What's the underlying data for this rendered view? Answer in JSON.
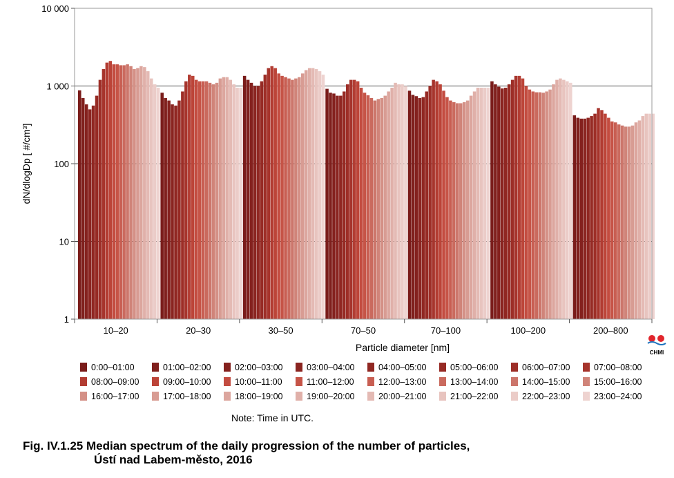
{
  "chart_data": {
    "type": "bar",
    "ylabel": "dN/dlogDp [ #/cm³]",
    "xlabel": "Particle diameter [nm]",
    "yscale": "log",
    "ylim": [
      1,
      10000
    ],
    "yticks": [
      "1",
      "10",
      "100",
      "1 000",
      "10 000"
    ],
    "categories": [
      "10–20",
      "20–30",
      "30–50",
      "70–50",
      "70–100",
      "100–200",
      "200–800"
    ],
    "series_names": [
      "0:00–01:00",
      "01:00–02:00",
      "02:00–03:00",
      "03:00–04:00",
      "04:00–05:00",
      "05:00–06:00",
      "06:00–07:00",
      "07:00–08:00",
      "08:00–09:00",
      "09:00–10:00",
      "10:00–11:00",
      "11:00–12:00",
      "12:00–13:00",
      "13:00–14:00",
      "14:00–15:00",
      "15:00–16:00",
      "16:00–17:00",
      "17:00–18:00",
      "18:00–19:00",
      "19:00–20:00",
      "20:00–21:00",
      "21:00–22:00",
      "22:00–23:00",
      "23:00–24:00"
    ],
    "colors": [
      "#7a1c1a",
      "#7f1f1c",
      "#84211e",
      "#8a2420",
      "#902722",
      "#962a24",
      "#9d2e27",
      "#a6342c",
      "#b23c32",
      "#bc4438",
      "#c34c40",
      "#c65447",
      "#c85e52",
      "#ca6a5e",
      "#cc766b",
      "#d08479",
      "#d49086",
      "#d89c93",
      "#dca69e",
      "#e0b0a9",
      "#e4bab4",
      "#e8c4bf",
      "#ebccc8",
      "#eed3d0"
    ],
    "values": [
      [
        880,
        700,
        580,
        500,
        560,
        750,
        1200,
        1650,
        2000,
        2100,
        1900,
        1900,
        1850,
        1850,
        1900,
        1800,
        1650,
        1700,
        1800,
        1750,
        1550,
        1250,
        1050,
        950
      ],
      [
        820,
        700,
        650,
        580,
        560,
        650,
        850,
        1150,
        1400,
        1350,
        1200,
        1150,
        1150,
        1150,
        1100,
        1050,
        1100,
        1250,
        1300,
        1300,
        1200,
        1050,
        950,
        950
      ],
      [
        1350,
        1200,
        1100,
        1000,
        1000,
        1150,
        1400,
        1700,
        1800,
        1700,
        1450,
        1350,
        1300,
        1250,
        1200,
        1250,
        1300,
        1450,
        1600,
        1700,
        1700,
        1650,
        1550,
        1400
      ],
      [
        920,
        820,
        800,
        750,
        750,
        850,
        1050,
        1200,
        1200,
        1150,
        950,
        820,
        760,
        700,
        650,
        680,
        700,
        750,
        850,
        950,
        1100,
        1050,
        1050,
        1000
      ],
      [
        870,
        770,
        740,
        700,
        720,
        850,
        1000,
        1200,
        1150,
        1050,
        870,
        720,
        650,
        620,
        600,
        600,
        620,
        650,
        750,
        850,
        950,
        950,
        950,
        950
      ],
      [
        1150,
        1050,
        980,
        930,
        950,
        1050,
        1200,
        1350,
        1350,
        1250,
        1000,
        900,
        850,
        830,
        830,
        820,
        850,
        900,
        1050,
        1200,
        1250,
        1200,
        1150,
        1100
      ],
      [
        420,
        390,
        380,
        380,
        390,
        410,
        440,
        520,
        490,
        440,
        390,
        350,
        340,
        320,
        310,
        300,
        300,
        310,
        340,
        360,
        410,
        440,
        440,
        440
      ]
    ]
  },
  "legend_rows": [
    [
      "0:00–01:00",
      "01:00–02:00",
      "02:00–03:00",
      "03:00–04:00",
      "04:00–05:00",
      "05:00–06:00",
      "06:00–07:00",
      "07:00–08:00"
    ],
    [
      "08:00–09:00",
      "09:00–10:00",
      "10:00–11:00",
      "11:00–12:00",
      "12:00–13:00",
      "13:00–14:00",
      "14:00–15:00",
      "15:00–16:00"
    ],
    [
      "16:00–17:00",
      "17:00–18:00",
      "18:00–19:00",
      "19:00–20:00",
      "20:00–21:00",
      "21:00–22:00",
      "22:00–23:00",
      "23:00–24:00"
    ]
  ],
  "note": "Note: Time in UTC.",
  "caption_line1": "Fig. IV.1.25  Median spectrum of the daily progression of the number of particles,",
  "caption_line2": "Ústí nad Labem-město, 2016",
  "logo_text": "CHMI"
}
